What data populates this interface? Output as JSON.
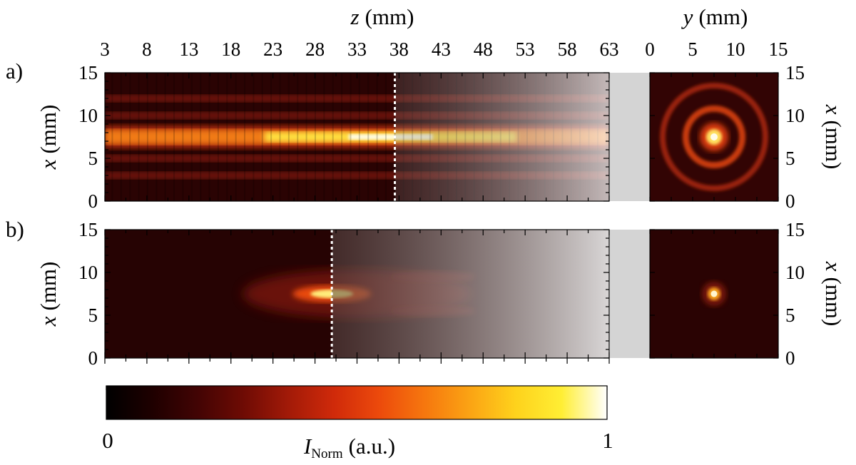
{
  "chart_data": [
    {
      "type": "heatmap",
      "panel_label": "a)",
      "x_axis": {
        "label_var": "z",
        "label_unit": "(mm)",
        "ticks": [
          "3",
          "8",
          "13",
          "18",
          "23",
          "28",
          "33",
          "38",
          "43",
          "48",
          "53",
          "58",
          "63"
        ],
        "range": [
          3,
          63
        ]
      },
      "y_axis": {
        "label_var": "x",
        "label_unit": "(mm)",
        "ticks": [
          "0",
          "5",
          "10",
          "15"
        ],
        "range": [
          0,
          15
        ]
      },
      "beam_center_x": 7.5,
      "side_lobes_x": [
        3,
        5,
        10,
        12
      ],
      "focus_z": 37.5,
      "marker_z": 37.5,
      "shaded_from_z": 37.5,
      "intensity_range": [
        0,
        1
      ]
    },
    {
      "type": "heatmap",
      "panel_label": "b)",
      "x_axis": {
        "ticks": [],
        "range": [
          3,
          63
        ]
      },
      "y_axis": {
        "label_var": "x",
        "label_unit": "(mm)",
        "ticks": [
          "0",
          "5",
          "10",
          "15"
        ],
        "range": [
          0,
          15
        ]
      },
      "beam_center_x": 7.5,
      "focus_z": 30,
      "marker_z": 30,
      "shaded_from_z": 30,
      "intensity_range": [
        0,
        1
      ]
    },
    {
      "type": "heatmap",
      "panel": "a-cross-section",
      "x_axis": {
        "label_var": "y",
        "label_unit": "(mm)",
        "ticks": [
          "0",
          "5",
          "10",
          "15"
        ],
        "range": [
          0,
          15
        ]
      },
      "y_axis": {
        "label_var": "x",
        "label_unit": "(mm)",
        "ticks": [
          "0",
          "5",
          "10",
          "15"
        ],
        "range": [
          0,
          15
        ],
        "side": "right"
      },
      "center": [
        7.5,
        7.5
      ],
      "ring_radii_mm": [
        3.3,
        6.0
      ]
    },
    {
      "type": "heatmap",
      "panel": "b-cross-section",
      "x_axis": {
        "ticks": [],
        "range": [
          0,
          15
        ]
      },
      "y_axis": {
        "label_var": "x",
        "label_unit": "(mm)",
        "ticks": [
          "0",
          "5",
          "10",
          "15"
        ],
        "range": [
          0,
          15
        ],
        "side": "right"
      },
      "center": [
        7.5,
        7.5
      ]
    }
  ],
  "colorbar": {
    "label_var": "I",
    "label_sub": "Norm",
    "label_unit": "(a.u.)",
    "min_label": "0",
    "max_label": "1",
    "colormap": [
      "#000000",
      "#1e0000",
      "#420404",
      "#6e0b04",
      "#a21a08",
      "#d02a0a",
      "#ec4a0c",
      "#f6770e",
      "#fba414",
      "#fed21c",
      "#ffee34",
      "#ffffff"
    ]
  }
}
